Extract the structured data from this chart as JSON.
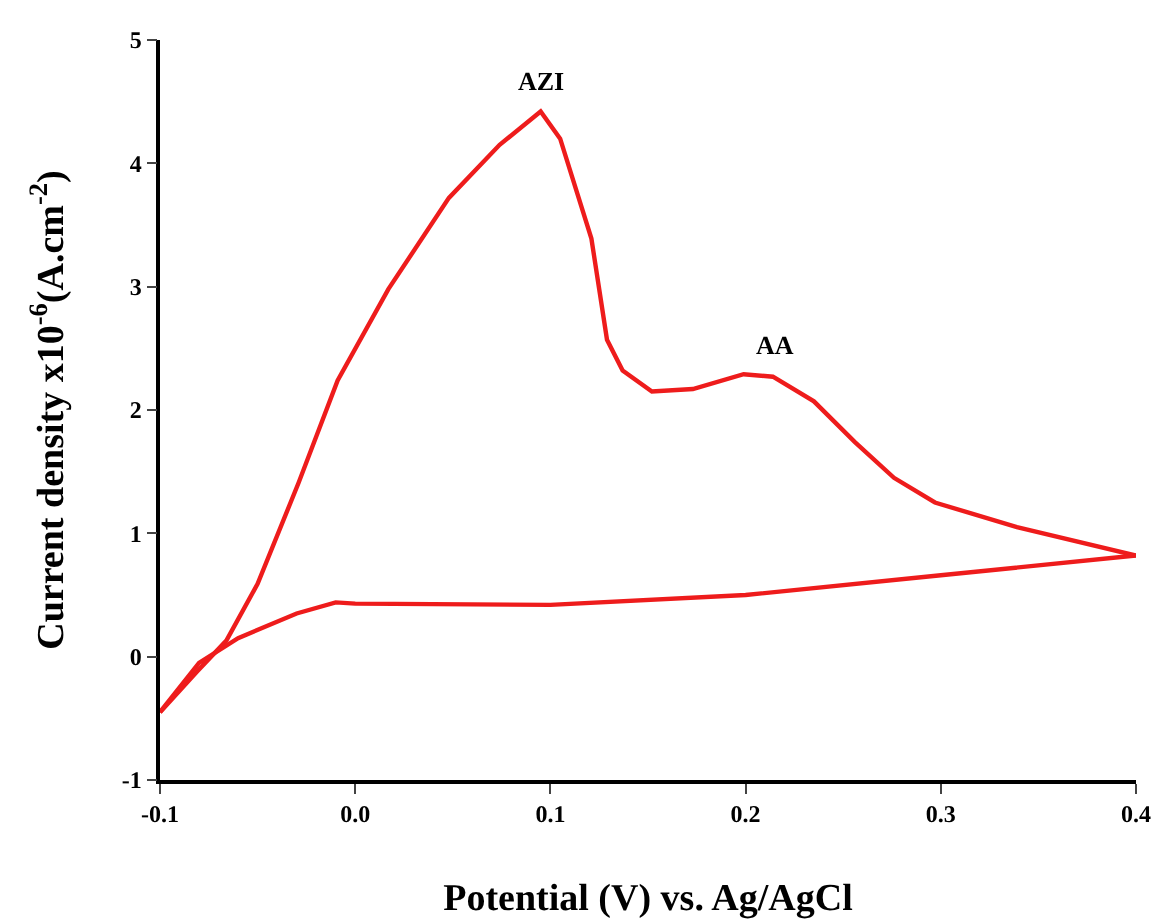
{
  "chart_data": {
    "type": "line",
    "xlabel": "Potential (V) vs. Ag/AgCl",
    "ylabel": "Current density x10$^{-6}$(A.cm$^{-2}$)",
    "series": [
      {
        "color": "#ee1c1c",
        "x": [
          -0.1,
          -0.081,
          -0.066,
          -0.05,
          -0.029,
          -0.009,
          0.017,
          0.048,
          0.074,
          0.095,
          0.105,
          0.121,
          0.129,
          0.137,
          0.152,
          0.173,
          0.199,
          0.214,
          0.235,
          0.256,
          0.276,
          0.297,
          0.339,
          0.4
        ],
        "values": [
          -0.45,
          -0.12,
          0.13,
          0.59,
          1.41,
          2.24,
          2.98,
          3.72,
          4.15,
          4.42,
          4.2,
          3.39,
          2.57,
          2.32,
          2.15,
          2.17,
          2.29,
          2.27,
          2.07,
          1.74,
          1.45,
          1.25,
          1.05,
          0.82
        ]
      },
      {
        "color": "#ee1c1c",
        "x": [
          0.4,
          0.3,
          0.2,
          0.1,
          0.0,
          -0.01,
          -0.03,
          -0.06,
          -0.08,
          -0.1
        ],
        "values": [
          0.82,
          0.66,
          0.5,
          0.42,
          0.43,
          0.44,
          0.35,
          0.15,
          -0.05,
          -0.45
        ]
      }
    ],
    "xlim": [
      -0.1,
      0.4
    ],
    "xticks": [
      -0.1,
      {
        "value": 0,
        "label": "0.0"
      },
      0.1,
      0.2,
      0.3,
      0.4
    ],
    "ylim": [
      -1,
      5
    ],
    "yticks": [
      -1,
      0,
      1,
      2,
      3,
      4,
      5
    ],
    "annotations": [
      {
        "text": "AZI",
        "x": 0.095,
        "y": 4.42
      },
      {
        "text": "AA",
        "x": 0.215,
        "y": 2.27
      }
    ],
    "grid": false,
    "legend": false,
    "marker": "none",
    "line_style": "solid"
  }
}
